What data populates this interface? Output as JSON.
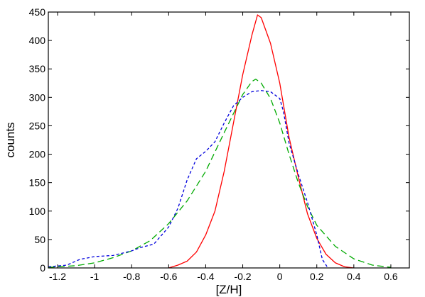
{
  "chart_data": {
    "type": "line",
    "title": "",
    "xlabel": "[Z/H]",
    "ylabel": "counts",
    "xlim": [
      -1.25,
      0.7
    ],
    "ylim": [
      0,
      450
    ],
    "x_ticks": [
      -1.2,
      -1,
      -0.8,
      -0.6,
      -0.4,
      -0.2,
      0,
      0.2,
      0.4,
      0.6
    ],
    "x_tick_labels": [
      "-1.2",
      "-1",
      "-0.8",
      "-0.6",
      "-0.4",
      "-0.2",
      "0",
      "0.2",
      "0.4",
      "0.6"
    ],
    "y_ticks": [
      0,
      50,
      100,
      150,
      200,
      250,
      300,
      350,
      400,
      450
    ],
    "y_tick_labels": [
      "0",
      "50",
      "100",
      "150",
      "200",
      "250",
      "300",
      "350",
      "400",
      "450"
    ],
    "grid": false,
    "legend": null,
    "series": [
      {
        "color": "#ff0000",
        "style": "solid",
        "points": [
          [
            -0.6,
            0
          ],
          [
            -0.55,
            5
          ],
          [
            -0.5,
            12
          ],
          [
            -0.45,
            28
          ],
          [
            -0.4,
            58
          ],
          [
            -0.35,
            100
          ],
          [
            -0.3,
            170
          ],
          [
            -0.25,
            255
          ],
          [
            -0.2,
            340
          ],
          [
            -0.15,
            410
          ],
          [
            -0.12,
            445
          ],
          [
            -0.1,
            440
          ],
          [
            -0.05,
            395
          ],
          [
            0.0,
            325
          ],
          [
            0.05,
            230
          ],
          [
            0.1,
            160
          ],
          [
            0.15,
            95
          ],
          [
            0.2,
            52
          ],
          [
            0.25,
            24
          ],
          [
            0.3,
            9
          ],
          [
            0.35,
            2
          ],
          [
            0.4,
            0
          ]
        ]
      },
      {
        "color": "#00aa00",
        "style": "dashed",
        "points": [
          [
            -1.25,
            1
          ],
          [
            -1.1,
            4
          ],
          [
            -1.0,
            9
          ],
          [
            -0.9,
            18
          ],
          [
            -0.8,
            30
          ],
          [
            -0.7,
            48
          ],
          [
            -0.6,
            78
          ],
          [
            -0.5,
            118
          ],
          [
            -0.4,
            170
          ],
          [
            -0.3,
            238
          ],
          [
            -0.2,
            305
          ],
          [
            -0.15,
            328
          ],
          [
            -0.13,
            332
          ],
          [
            -0.1,
            325
          ],
          [
            -0.05,
            298
          ],
          [
            0.0,
            255
          ],
          [
            0.05,
            200
          ],
          [
            0.1,
            150
          ],
          [
            0.15,
            108
          ],
          [
            0.2,
            75
          ],
          [
            0.3,
            38
          ],
          [
            0.4,
            16
          ],
          [
            0.5,
            5
          ],
          [
            0.6,
            1
          ]
        ]
      },
      {
        "color": "#0000dd",
        "style": "dotted",
        "points": [
          [
            -1.25,
            2
          ],
          [
            -1.15,
            5
          ],
          [
            -1.08,
            15
          ],
          [
            -1.0,
            20
          ],
          [
            -0.9,
            22
          ],
          [
            -0.8,
            30
          ],
          [
            -0.75,
            36
          ],
          [
            -0.68,
            42
          ],
          [
            -0.6,
            72
          ],
          [
            -0.55,
            105
          ],
          [
            -0.5,
            155
          ],
          [
            -0.45,
            192
          ],
          [
            -0.4,
            205
          ],
          [
            -0.35,
            222
          ],
          [
            -0.3,
            255
          ],
          [
            -0.25,
            285
          ],
          [
            -0.2,
            300
          ],
          [
            -0.15,
            310
          ],
          [
            -0.1,
            312
          ],
          [
            -0.05,
            310
          ],
          [
            0.0,
            298
          ],
          [
            0.02,
            275
          ],
          [
            0.05,
            220
          ],
          [
            0.1,
            165
          ],
          [
            0.15,
            115
          ],
          [
            0.2,
            58
          ],
          [
            0.23,
            15
          ],
          [
            0.26,
            0
          ]
        ]
      }
    ]
  }
}
